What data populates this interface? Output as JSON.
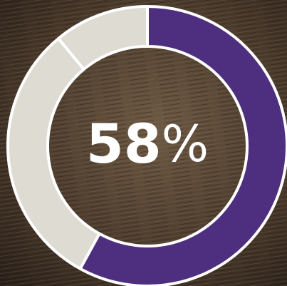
{
  "chart_data": {
    "type": "pie",
    "donut": true,
    "values": [
      58,
      31,
      11
    ],
    "value_labels": [
      "58%",
      null,
      null
    ],
    "colors": [
      "#4e2e7e",
      "#dedbd3",
      "#dedbd3"
    ]
  }
}
